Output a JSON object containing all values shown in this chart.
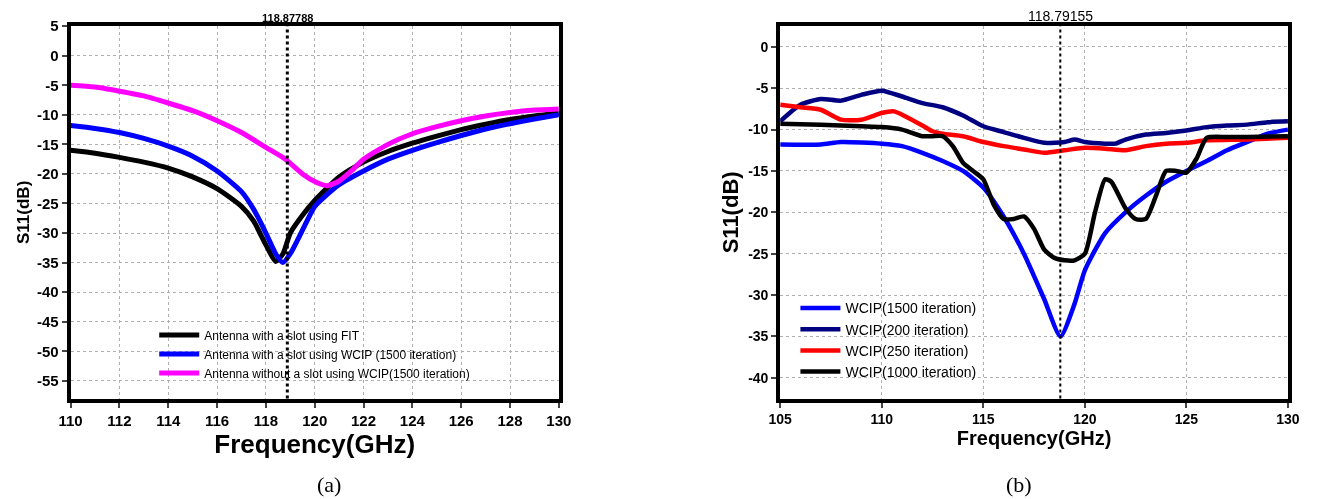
{
  "chart_data": [
    {
      "type": "line",
      "xlabel": "Frequency(GHz)",
      "ylabel": "S11(dB)",
      "xlim": [
        110,
        130
      ],
      "xticks": [
        110,
        112,
        114,
        116,
        118,
        120,
        122,
        124,
        126,
        128,
        130
      ],
      "ylim": [
        -58,
        5
      ],
      "yticks": [
        5,
        0,
        -5,
        -10,
        -15,
        -20,
        -25,
        -30,
        -35,
        -40,
        -45,
        -50,
        -55
      ],
      "grid": true,
      "legend": "bottom",
      "line_style": "solid",
      "marker": "none",
      "ref_lines": [
        {
          "axis": "x",
          "value": 118.87788,
          "label": "118,87788",
          "line_style": "dotted"
        }
      ],
      "annotations": [
        "(a)"
      ],
      "series": [
        {
          "name": "Antenna with a slot using FIT",
          "color": "#000000",
          "x": [
            110,
            111,
            112,
            113,
            114,
            115,
            116,
            117,
            117.5,
            118,
            118.4,
            118.7,
            119,
            119.5,
            120,
            121,
            122,
            123,
            124,
            125,
            126,
            127,
            128,
            129,
            130
          ],
          "values": [
            -16,
            -16.5,
            -17.2,
            -18,
            -19,
            -20.5,
            -22.5,
            -25.5,
            -28,
            -32,
            -34.8,
            -33.5,
            -30,
            -27,
            -24.5,
            -20.5,
            -18,
            -16.2,
            -14.8,
            -13.6,
            -12.5,
            -11.6,
            -10.8,
            -10.2,
            -9.7
          ]
        },
        {
          "name": "Antenna with a slot using WCIP (1500 iteration)",
          "color": "#0000ff",
          "x": [
            110,
            111,
            112,
            113,
            114,
            115,
            116,
            117,
            117.5,
            118,
            118.4,
            118.7,
            119,
            119.5,
            120,
            120.5,
            121,
            122,
            123,
            124,
            125,
            126,
            127,
            128,
            129,
            130
          ],
          "values": [
            -11.8,
            -12.3,
            -13,
            -14,
            -15.3,
            -17,
            -19.5,
            -23,
            -26,
            -30,
            -33.5,
            -35,
            -33.5,
            -29.5,
            -25.5,
            -23.5,
            -21.8,
            -19.5,
            -17.5,
            -16,
            -14.7,
            -13.5,
            -12.4,
            -11.5,
            -10.7,
            -10
          ]
        },
        {
          "name": "Antenna without a slot using WCIP(1500 iteration)",
          "color": "#ff00ff",
          "x": [
            110,
            111,
            112,
            113,
            114,
            115,
            116,
            117,
            118,
            118.8,
            119.5,
            120,
            120.5,
            121,
            121.5,
            122,
            123,
            124,
            125,
            126,
            127,
            128,
            129,
            130
          ],
          "values": [
            -5,
            -5.3,
            -6,
            -6.8,
            -8,
            -9.3,
            -11,
            -13,
            -15.5,
            -17.5,
            -20,
            -21.3,
            -22,
            -21.2,
            -19.5,
            -17.5,
            -15,
            -13.2,
            -12,
            -11,
            -10.2,
            -9.6,
            -9.2,
            -9
          ]
        }
      ]
    },
    {
      "type": "line",
      "xlabel": "Frequency(GHz)",
      "ylabel": "S11(dB)",
      "xlim": [
        105,
        130
      ],
      "xticks": [
        105,
        110,
        115,
        120,
        125,
        130
      ],
      "ylim": [
        -42.5,
        2.5
      ],
      "yticks": [
        0,
        -5,
        -10,
        -15,
        -20,
        -25,
        -30,
        -35,
        -40
      ],
      "grid": true,
      "legend": "bottom left",
      "line_style": "solid",
      "marker": "none",
      "ref_lines": [
        {
          "axis": "x",
          "value": 118.79155,
          "label": "118.79155",
          "line_style": "dotted"
        }
      ],
      "annotations": [
        "(b)"
      ],
      "series": [
        {
          "name": "WCIP(1500 iteration)",
          "color": "#0000ff",
          "x": [
            105,
            107,
            108,
            110,
            111,
            112,
            113,
            114,
            115,
            116,
            117,
            118,
            118.8,
            119.5,
            120,
            121,
            122,
            123,
            124,
            125,
            126,
            127,
            128,
            129,
            130
          ],
          "values": [
            -11.8,
            -11.8,
            -11.5,
            -11.7,
            -12,
            -12.8,
            -13.8,
            -15,
            -17,
            -20.5,
            -25,
            -30.5,
            -35,
            -31,
            -27,
            -22.5,
            -20,
            -18,
            -16.3,
            -15,
            -13.8,
            -12.5,
            -11.5,
            -10.5,
            -10
          ]
        },
        {
          "name": "WCIP(200 iteration)",
          "color": "#000080",
          "x": [
            105,
            106,
            107,
            108,
            109,
            110,
            111,
            112,
            113,
            114,
            115,
            116,
            117,
            118,
            119,
            119.5,
            120,
            121,
            121.5,
            122,
            123,
            124,
            125,
            126,
            127,
            128,
            129,
            130
          ],
          "values": [
            -9,
            -7,
            -6.3,
            -6.5,
            -5.8,
            -5.3,
            -6,
            -6.8,
            -7.3,
            -8.3,
            -9.6,
            -10.3,
            -11,
            -11.6,
            -11.5,
            -11.2,
            -11.5,
            -11.7,
            -11.7,
            -11.2,
            -10.6,
            -10.4,
            -10.1,
            -9.7,
            -9.5,
            -9.4,
            -9.1,
            -9
          ]
        },
        {
          "name": "WCIP(250 iteration)",
          "color": "#ff0000",
          "x": [
            105,
            106,
            107,
            108,
            109,
            110,
            110.6,
            111,
            112,
            112.5,
            113,
            114,
            115,
            116,
            117,
            118,
            119,
            120,
            121,
            122,
            123,
            124,
            125,
            126,
            128,
            130
          ],
          "values": [
            -7,
            -7.3,
            -7.6,
            -8.8,
            -8.8,
            -8,
            -7.8,
            -8.2,
            -9.5,
            -10.2,
            -10.5,
            -10.8,
            -11.5,
            -12,
            -12.4,
            -12.8,
            -12.5,
            -12.2,
            -12.3,
            -12.5,
            -12,
            -11.7,
            -11.6,
            -11.3,
            -11.2,
            -11
          ]
        },
        {
          "name": "WCIP(1000 iteration)",
          "color": "#000000",
          "x": [
            105,
            107,
            109,
            110,
            111,
            112,
            112.5,
            113,
            113.5,
            114,
            114.5,
            115,
            115.5,
            116,
            116.5,
            117,
            117.5,
            118,
            118.5,
            119,
            119.5,
            120,
            120.5,
            121,
            121.3,
            122,
            122.5,
            123,
            123.5,
            124,
            124.5,
            125,
            125.5,
            126,
            127,
            128,
            130
          ],
          "values": [
            -9.3,
            -9.4,
            -9.6,
            -9.7,
            -10,
            -10.8,
            -10.8,
            -10.8,
            -12,
            -14,
            -15,
            -16,
            -19,
            -20.8,
            -20.8,
            -20.5,
            -22,
            -24.5,
            -25.5,
            -25.8,
            -25.8,
            -25,
            -20,
            -16,
            -16.3,
            -19.5,
            -20.8,
            -20.8,
            -18,
            -15,
            -15,
            -15.2,
            -13.5,
            -11,
            -10.9,
            -10.9,
            -10.8
          ]
        }
      ]
    }
  ]
}
